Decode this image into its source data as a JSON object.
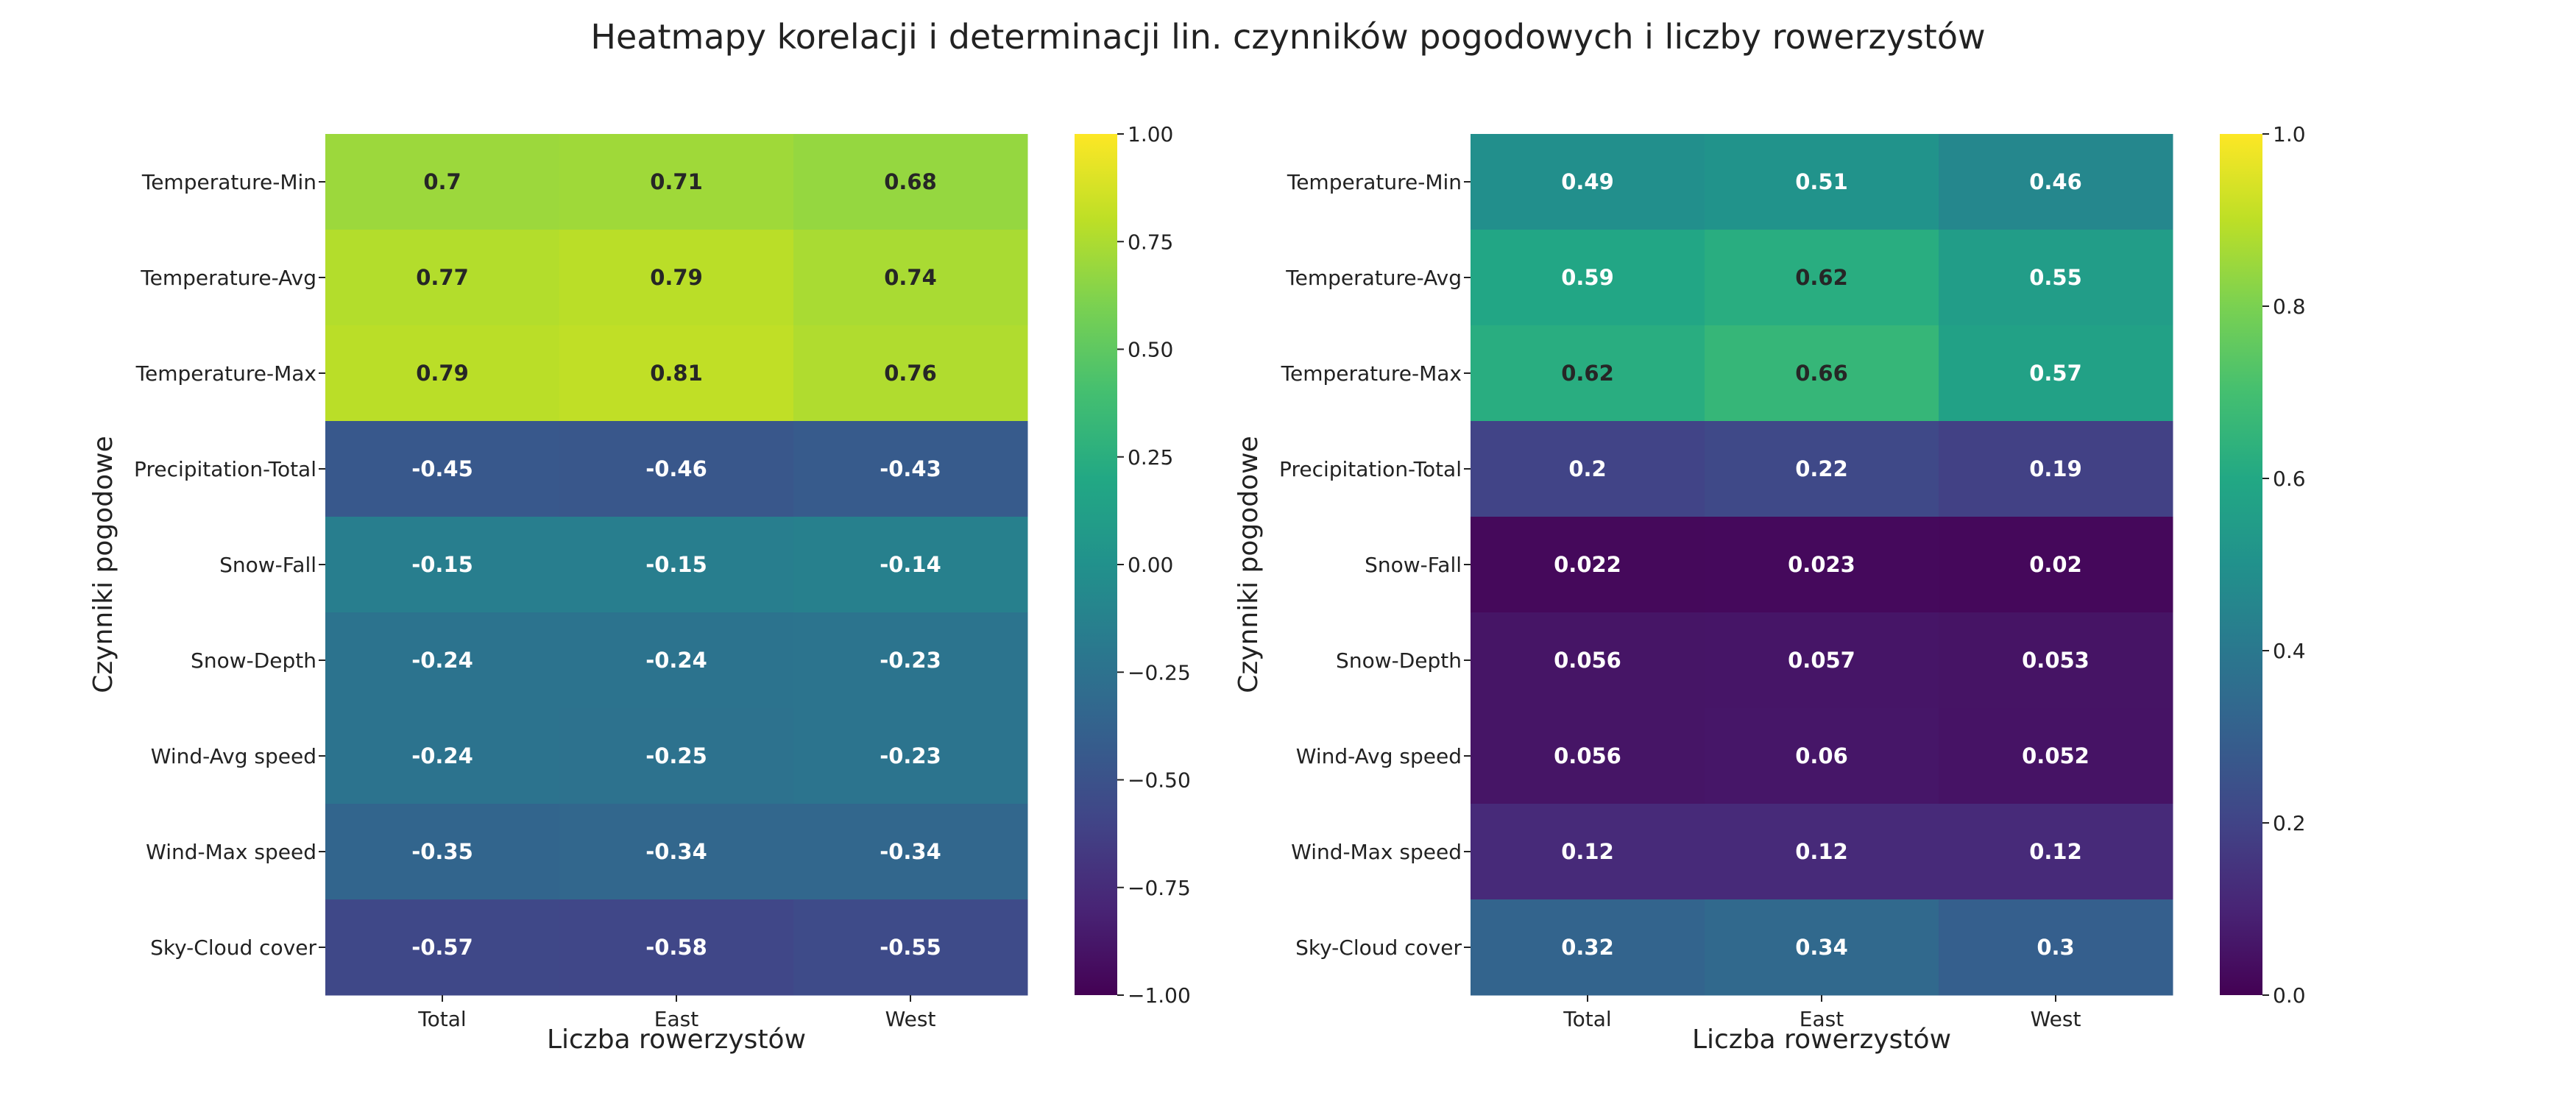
{
  "title": "Heatmapy korelacji i determinacji lin. czynników pogodowych i liczby rowerzystów",
  "chart_data": [
    {
      "type": "heatmap",
      "xlabel": "Liczba rowerzystów",
      "ylabel": "Czynniki pogodowe",
      "categories_x": [
        "Total",
        "East",
        "West"
      ],
      "categories_y": [
        "Temperature-Min",
        "Temperature-Avg",
        "Temperature-Max",
        "Precipitation-Total",
        "Snow-Fall",
        "Snow-Depth",
        "Wind-Avg speed",
        "Wind-Max speed",
        "Sky-Cloud cover"
      ],
      "values": [
        [
          0.7,
          0.71,
          0.68
        ],
        [
          0.77,
          0.79,
          0.74
        ],
        [
          0.79,
          0.81,
          0.76
        ],
        [
          -0.45,
          -0.46,
          -0.43
        ],
        [
          -0.15,
          -0.15,
          -0.14
        ],
        [
          -0.24,
          -0.24,
          -0.23
        ],
        [
          -0.24,
          -0.25,
          -0.23
        ],
        [
          -0.35,
          -0.34,
          -0.34
        ],
        [
          -0.57,
          -0.58,
          -0.55
        ]
      ],
      "labels": [
        [
          "0.7",
          "0.71",
          "0.68"
        ],
        [
          "0.77",
          "0.79",
          "0.74"
        ],
        [
          "0.79",
          "0.81",
          "0.76"
        ],
        [
          "-0.45",
          "-0.46",
          "-0.43"
        ],
        [
          "-0.15",
          "-0.15",
          "-0.14"
        ],
        [
          "-0.24",
          "-0.24",
          "-0.23"
        ],
        [
          "-0.24",
          "-0.25",
          "-0.23"
        ],
        [
          "-0.35",
          "-0.34",
          "-0.34"
        ],
        [
          "-0.57",
          "-0.58",
          "-0.55"
        ]
      ],
      "colorscale": "viridis",
      "vmin": -1.0,
      "vmax": 1.0,
      "colorbar_ticks": [
        -1.0,
        -0.75,
        -0.5,
        -0.25,
        0.0,
        0.25,
        0.5,
        0.75,
        1.0
      ],
      "colorbar_tick_labels": [
        "−1.00",
        "−0.75",
        "−0.50",
        "−0.25",
        "0.00",
        "0.25",
        "0.50",
        "0.75",
        "1.00"
      ]
    },
    {
      "type": "heatmap",
      "xlabel": "Liczba rowerzystów",
      "ylabel": "Czynniki pogodowe",
      "categories_x": [
        "Total",
        "East",
        "West"
      ],
      "categories_y": [
        "Temperature-Min",
        "Temperature-Avg",
        "Temperature-Max",
        "Precipitation-Total",
        "Snow-Fall",
        "Snow-Depth",
        "Wind-Avg speed",
        "Wind-Max speed",
        "Sky-Cloud cover"
      ],
      "values": [
        [
          0.49,
          0.51,
          0.46
        ],
        [
          0.59,
          0.62,
          0.55
        ],
        [
          0.62,
          0.66,
          0.57
        ],
        [
          0.2,
          0.22,
          0.19
        ],
        [
          0.022,
          0.023,
          0.02
        ],
        [
          0.056,
          0.057,
          0.053
        ],
        [
          0.056,
          0.06,
          0.052
        ],
        [
          0.12,
          0.12,
          0.12
        ],
        [
          0.32,
          0.34,
          0.3
        ]
      ],
      "labels": [
        [
          "0.49",
          "0.51",
          "0.46"
        ],
        [
          "0.59",
          "0.62",
          "0.55"
        ],
        [
          "0.62",
          "0.66",
          "0.57"
        ],
        [
          "0.2",
          "0.22",
          "0.19"
        ],
        [
          "0.022",
          "0.023",
          "0.02"
        ],
        [
          "0.056",
          "0.057",
          "0.053"
        ],
        [
          "0.056",
          "0.06",
          "0.052"
        ],
        [
          "0.12",
          "0.12",
          "0.12"
        ],
        [
          "0.32",
          "0.34",
          "0.3"
        ]
      ],
      "colorscale": "viridis",
      "vmin": 0.0,
      "vmax": 1.0,
      "colorbar_ticks": [
        0.0,
        0.2,
        0.4,
        0.6,
        0.8,
        1.0
      ],
      "colorbar_tick_labels": [
        "0.0",
        "0.2",
        "0.4",
        "0.6",
        "0.8",
        "1.0"
      ]
    }
  ]
}
